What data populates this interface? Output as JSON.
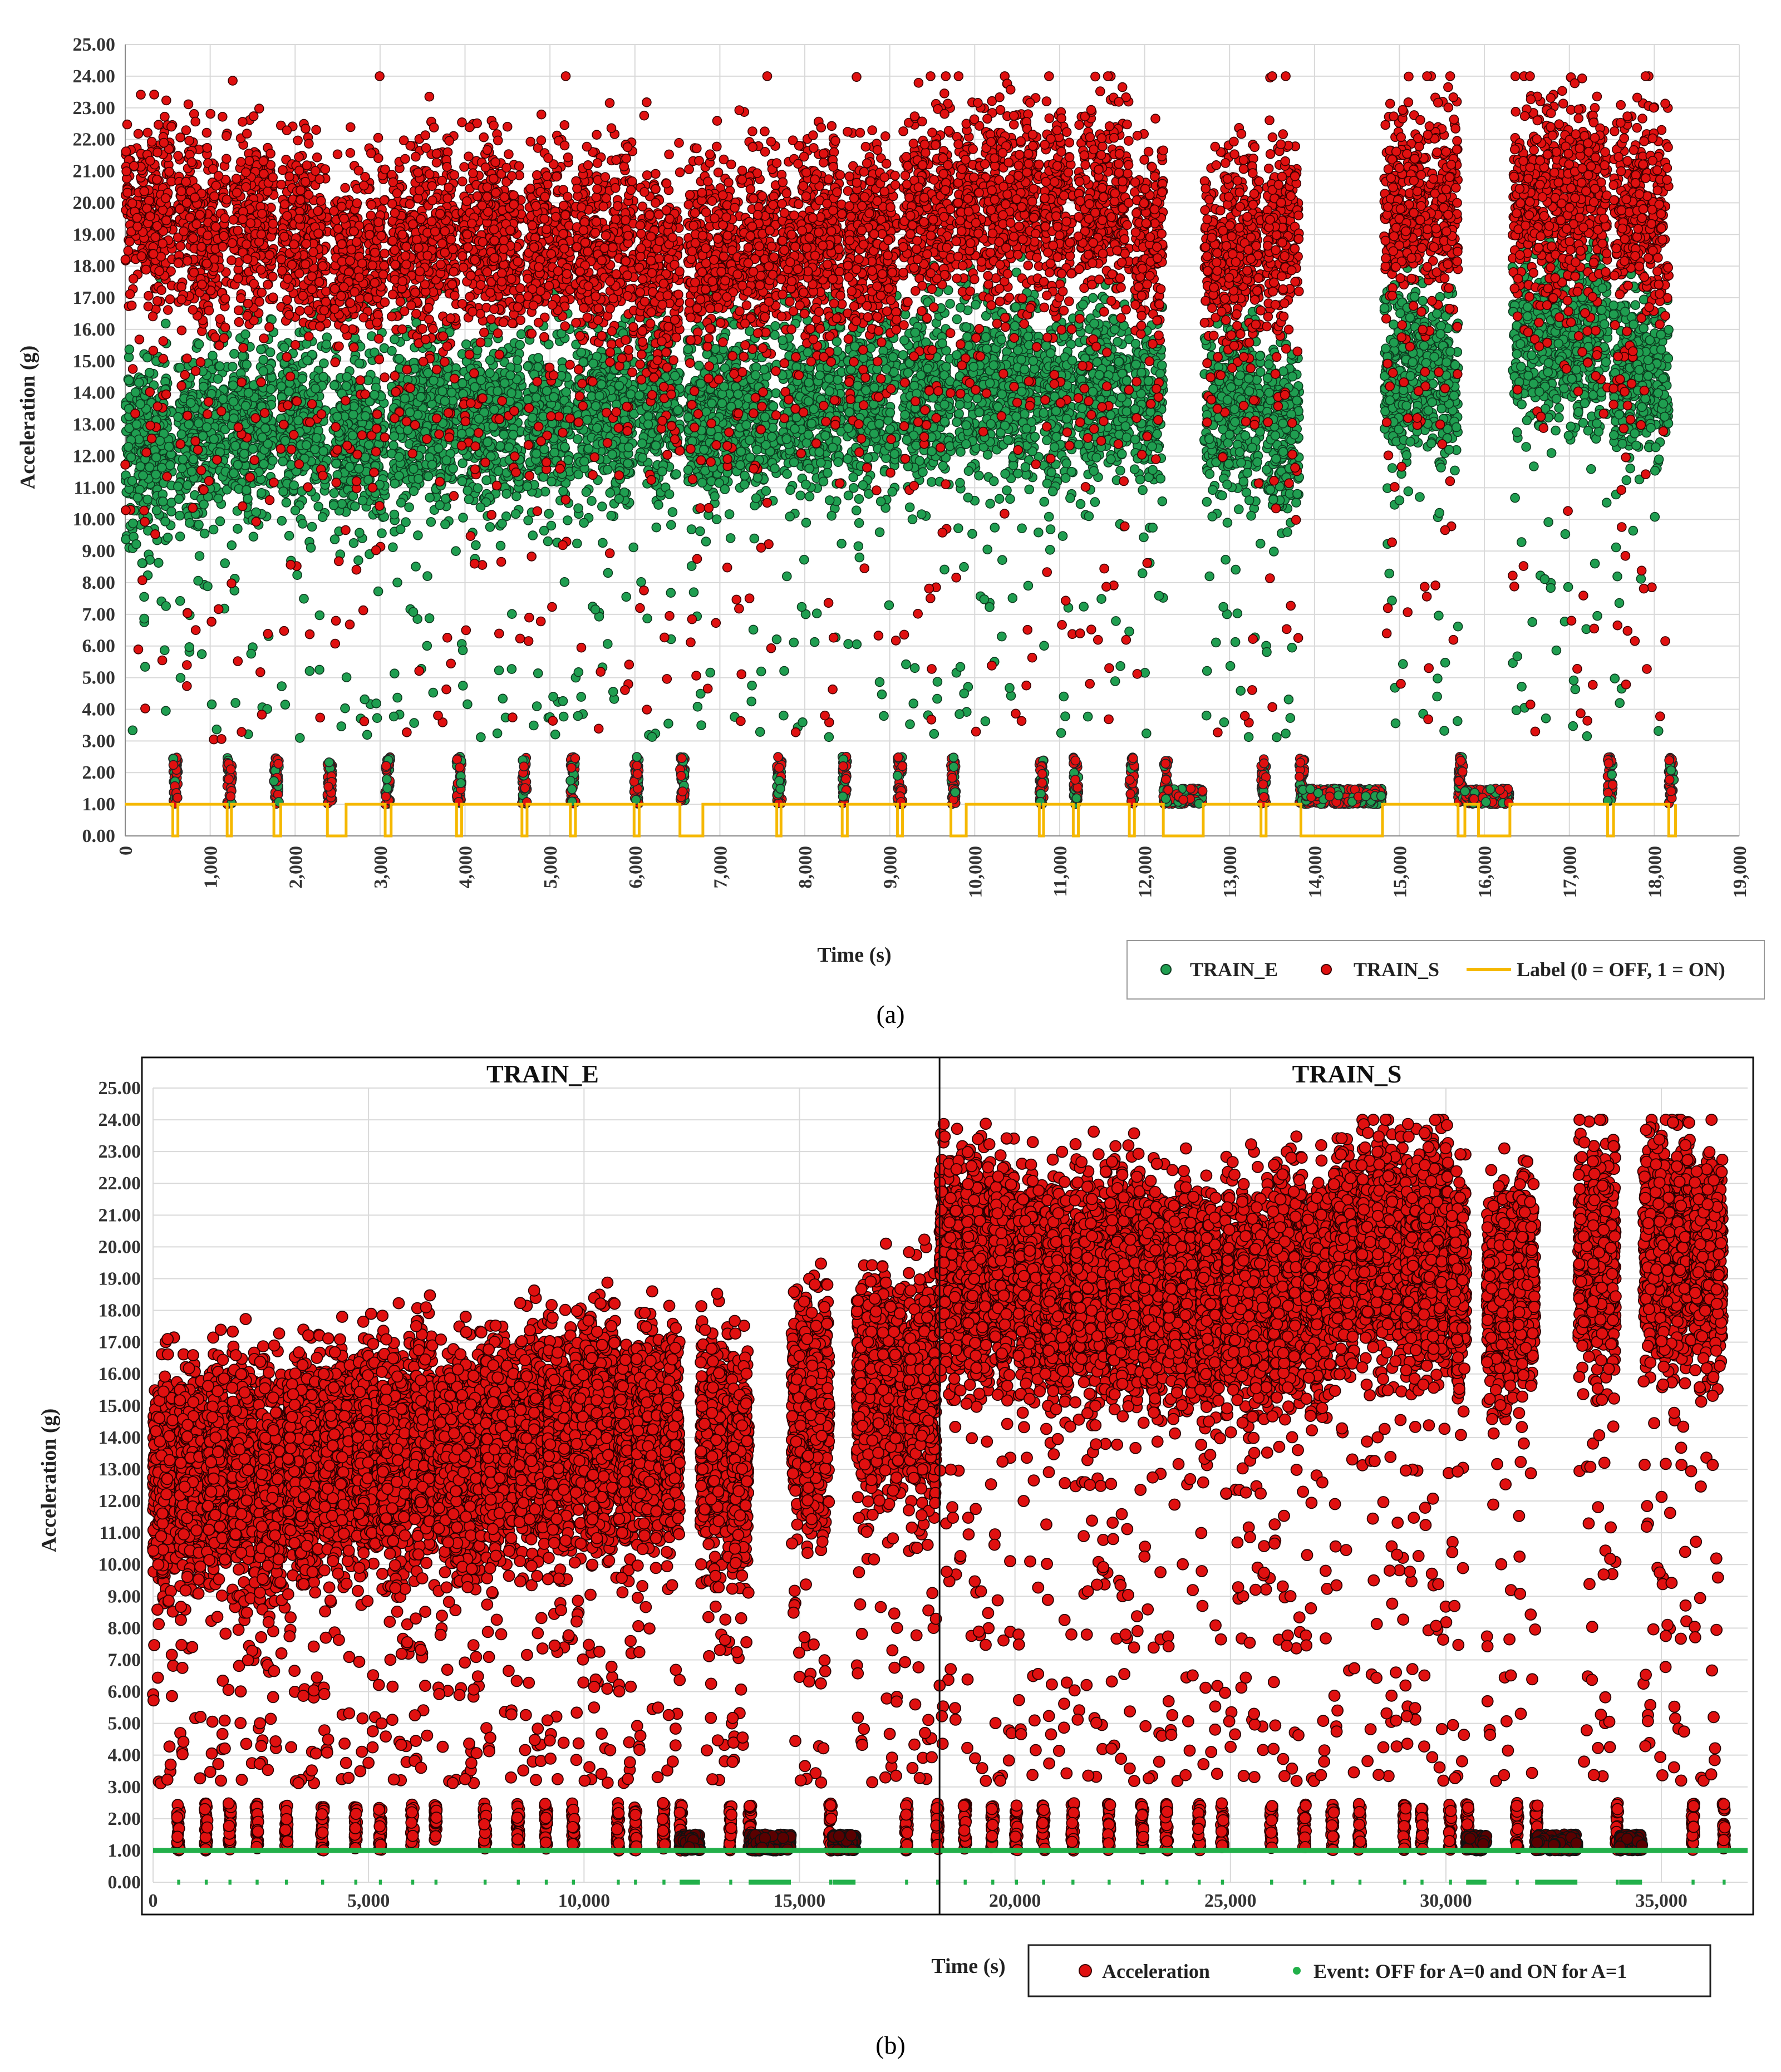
{
  "figure": {
    "panel_a_label": "(a)",
    "panel_b_label": "(b)"
  },
  "chart_data": [
    {
      "type": "scatter",
      "panel": "(a)",
      "xlabel": "Time (s)",
      "ylabel": "Acceleration (g)",
      "xlim": [
        0,
        19000
      ],
      "ylim": [
        0,
        25
      ],
      "x_ticks": [
        "0",
        "1,000",
        "2,000",
        "3,000",
        "4,000",
        "5,000",
        "6,000",
        "7,000",
        "8,000",
        "9,000",
        "10,000",
        "11,000",
        "12,000",
        "13,000",
        "14,000",
        "15,000",
        "16,000",
        "17,000",
        "18,000",
        "19,000"
      ],
      "y_ticks": [
        "0.00",
        "1.00",
        "2.00",
        "3.00",
        "4.00",
        "5.00",
        "6.00",
        "7.00",
        "8.00",
        "9.00",
        "10.00",
        "11.00",
        "12.00",
        "13.00",
        "14.00",
        "15.00",
        "16.00",
        "17.00",
        "18.00",
        "19.00",
        "20.00",
        "21.00",
        "22.00",
        "23.00",
        "24.00",
        "25.00"
      ],
      "grid": true,
      "legend": {
        "placement": "bottom-right",
        "entries": [
          "TRAIN_E",
          "TRAIN_S",
          "Label (0 = OFF, 1 = ON)"
        ]
      },
      "colors": {
        "TRAIN_E": "#1f9e50",
        "TRAIN_S": "#e01010",
        "Label": "#f5b800"
      },
      "active_segments": [
        {
          "start": 0,
          "end": 560,
          "e_mean": 12.3,
          "s_mean": 19.6
        },
        {
          "start": 620,
          "end": 1200,
          "e_mean": 12.5,
          "s_mean": 19.2
        },
        {
          "start": 1250,
          "end": 1750,
          "e_mean": 12.8,
          "s_mean": 19.4
        },
        {
          "start": 1830,
          "end": 2380,
          "e_mean": 13.0,
          "s_mean": 18.8
        },
        {
          "start": 2450,
          "end": 3060,
          "e_mean": 12.6,
          "s_mean": 18.2
        },
        {
          "start": 3130,
          "end": 3900,
          "e_mean": 13.2,
          "s_mean": 18.8
        },
        {
          "start": 3960,
          "end": 4670,
          "e_mean": 13.1,
          "s_mean": 18.9
        },
        {
          "start": 4730,
          "end": 5240,
          "e_mean": 13.2,
          "s_mean": 18.6
        },
        {
          "start": 5300,
          "end": 5990,
          "e_mean": 13.4,
          "s_mean": 18.6
        },
        {
          "start": 6050,
          "end": 6530,
          "e_mean": 13.8,
          "s_mean": 17.8
        },
        {
          "start": 6620,
          "end": 7670,
          "e_mean": 13.3,
          "s_mean": 18.4
        },
        {
          "start": 7720,
          "end": 8440,
          "e_mean": 13.6,
          "s_mean": 18.8
        },
        {
          "start": 8500,
          "end": 9090,
          "e_mean": 13.8,
          "s_mean": 18.6
        },
        {
          "start": 9150,
          "end": 9720,
          "e_mean": 14.0,
          "s_mean": 19.6
        },
        {
          "start": 9780,
          "end": 10760,
          "e_mean": 14.2,
          "s_mean": 20.0
        },
        {
          "start": 10810,
          "end": 11160,
          "e_mean": 13.6,
          "s_mean": 19.6
        },
        {
          "start": 11220,
          "end": 11820,
          "e_mean": 14.1,
          "s_mean": 19.8
        },
        {
          "start": 11880,
          "end": 12220,
          "e_mean": 13.6,
          "s_mean": 18.8
        },
        {
          "start": 12700,
          "end": 13370,
          "e_mean": 13.6,
          "s_mean": 18.6
        },
        {
          "start": 13430,
          "end": 13820,
          "e_mean": 12.9,
          "s_mean": 19.0
        },
        {
          "start": 14820,
          "end": 15690,
          "e_mean": 14.6,
          "s_mean": 19.8
        },
        {
          "start": 16330,
          "end": 17450,
          "e_mean": 15.8,
          "s_mean": 20.2
        },
        {
          "start": 17520,
          "end": 18170,
          "e_mean": 14.4,
          "s_mean": 19.6
        }
      ],
      "idle_bursts": [
        560,
        1200,
        1750,
        2380,
        3060,
        3900,
        4670,
        5240,
        5990,
        6530,
        7670,
        8440,
        9090,
        9720,
        10760,
        11160,
        11820,
        12220,
        13370,
        13820,
        15690,
        17450,
        18170
      ],
      "idle_level": [
        1.0,
        2.5
      ],
      "long_idle_intervals": [
        [
          12220,
          12690
        ],
        [
          13840,
          14800
        ],
        [
          15770,
          16300
        ]
      ],
      "label_off_intervals": [
        [
          560,
          620
        ],
        [
          1200,
          1250
        ],
        [
          1750,
          1830
        ],
        [
          2380,
          2600
        ],
        [
          3060,
          3130
        ],
        [
          3900,
          3960
        ],
        [
          4670,
          4730
        ],
        [
          5240,
          5300
        ],
        [
          5990,
          6050
        ],
        [
          6530,
          6800
        ],
        [
          7670,
          7720
        ],
        [
          8440,
          8500
        ],
        [
          9090,
          9150
        ],
        [
          9720,
          9900
        ],
        [
          10760,
          10810
        ],
        [
          11160,
          11220
        ],
        [
          11820,
          11880
        ],
        [
          12220,
          12690
        ],
        [
          13370,
          13430
        ],
        [
          13840,
          14800
        ],
        [
          15690,
          15770
        ],
        [
          15930,
          16300
        ],
        [
          17450,
          17520
        ],
        [
          18170,
          18250
        ]
      ],
      "label_range_x": [
        0,
        18250
      ]
    },
    {
      "type": "scatter",
      "panel": "(b)",
      "xlabel": "Time (s)",
      "ylabel": "Acceleration (g)",
      "xlim": [
        0,
        37000
      ],
      "ylim": [
        0,
        25
      ],
      "x_ticks": [
        "0",
        "5,000",
        "10,000",
        "15,000",
        "20,000",
        "25,000",
        "30,000",
        "35,000"
      ],
      "y_ticks": [
        "0.00",
        "1.00",
        "2.00",
        "3.00",
        "4.00",
        "5.00",
        "6.00",
        "7.00",
        "8.00",
        "9.00",
        "10.00",
        "11.00",
        "12.00",
        "13.00",
        "14.00",
        "15.00",
        "16.00",
        "17.00",
        "18.00",
        "19.00",
        "20.00",
        "21.00",
        "22.00",
        "23.00",
        "24.00",
        "25.00"
      ],
      "grid": true,
      "region_labels": [
        "TRAIN_E",
        "TRAIN_S"
      ],
      "divider_x": 18250,
      "legend": {
        "placement": "bottom-right",
        "entries": [
          "Acceleration",
          "Event: OFF for A=0 and ON for A=1"
        ]
      },
      "colors": {
        "Acceleration": "#e01010",
        "Event": "#22b04a"
      },
      "active_segments": [
        {
          "start": 0,
          "end": 560,
          "mean": 12.6
        },
        {
          "start": 620,
          "end": 1200,
          "mean": 12.8
        },
        {
          "start": 1250,
          "end": 1750,
          "mean": 12.8
        },
        {
          "start": 1830,
          "end": 2380,
          "mean": 12.9
        },
        {
          "start": 2450,
          "end": 3060,
          "mean": 12.6
        },
        {
          "start": 3130,
          "end": 3900,
          "mean": 13.2
        },
        {
          "start": 3960,
          "end": 4670,
          "mean": 13.3
        },
        {
          "start": 4730,
          "end": 5240,
          "mean": 13.3
        },
        {
          "start": 5300,
          "end": 5990,
          "mean": 13.4
        },
        {
          "start": 6050,
          "end": 6530,
          "mean": 13.8
        },
        {
          "start": 6620,
          "end": 7670,
          "mean": 13.3
        },
        {
          "start": 7720,
          "end": 8440,
          "mean": 13.7
        },
        {
          "start": 8500,
          "end": 9090,
          "mean": 13.8
        },
        {
          "start": 9150,
          "end": 9720,
          "mean": 13.9
        },
        {
          "start": 9780,
          "end": 10760,
          "mean": 14.2
        },
        {
          "start": 10810,
          "end": 11160,
          "mean": 13.6
        },
        {
          "start": 11220,
          "end": 11820,
          "mean": 14.1
        },
        {
          "start": 11880,
          "end": 12220,
          "mean": 13.8
        },
        {
          "start": 12700,
          "end": 13370,
          "mean": 13.7
        },
        {
          "start": 13430,
          "end": 13820,
          "mean": 13.4
        },
        {
          "start": 14820,
          "end": 15690,
          "mean": 14.8
        },
        {
          "start": 16330,
          "end": 17450,
          "mean": 15.6
        },
        {
          "start": 17520,
          "end": 18170,
          "mean": 15.4
        },
        {
          "start": 18250,
          "end": 18810,
          "mean": 19.6
        },
        {
          "start": 18870,
          "end": 19450,
          "mean": 19.2
        },
        {
          "start": 19500,
          "end": 20000,
          "mean": 19.4
        },
        {
          "start": 20080,
          "end": 20630,
          "mean": 18.8
        },
        {
          "start": 20700,
          "end": 21310,
          "mean": 18.4
        },
        {
          "start": 21380,
          "end": 22150,
          "mean": 18.8
        },
        {
          "start": 22210,
          "end": 22920,
          "mean": 18.9
        },
        {
          "start": 22980,
          "end": 23490,
          "mean": 18.6
        },
        {
          "start": 23550,
          "end": 24240,
          "mean": 18.6
        },
        {
          "start": 24300,
          "end": 24780,
          "mean": 17.9
        },
        {
          "start": 24870,
          "end": 25920,
          "mean": 18.4
        },
        {
          "start": 25970,
          "end": 26690,
          "mean": 18.8
        },
        {
          "start": 26750,
          "end": 27340,
          "mean": 18.7
        },
        {
          "start": 27400,
          "end": 27970,
          "mean": 19.6
        },
        {
          "start": 28030,
          "end": 29010,
          "mean": 19.9
        },
        {
          "start": 29060,
          "end": 29410,
          "mean": 19.6
        },
        {
          "start": 29470,
          "end": 30070,
          "mean": 19.8
        },
        {
          "start": 30130,
          "end": 30470,
          "mean": 18.9
        },
        {
          "start": 30950,
          "end": 31620,
          "mean": 18.6
        },
        {
          "start": 31680,
          "end": 32070,
          "mean": 18.9
        },
        {
          "start": 33070,
          "end": 33940,
          "mean": 19.6
        },
        {
          "start": 34580,
          "end": 35700,
          "mean": 19.9
        },
        {
          "start": 35770,
          "end": 36420,
          "mean": 19.6
        }
      ],
      "idle_bursts": [
        560,
        1200,
        1750,
        2380,
        3060,
        3900,
        4670,
        5240,
        5990,
        6530,
        7670,
        8440,
        9090,
        9720,
        10760,
        11160,
        11820,
        12220,
        13370,
        13820,
        15690,
        17450,
        18170,
        18810,
        19450,
        20000,
        20630,
        21310,
        22150,
        22920,
        23490,
        24240,
        24780,
        25920,
        26690,
        27340,
        27970,
        29010,
        29410,
        30070,
        30470,
        31620,
        32070,
        33940,
        35700,
        36420
      ],
      "idle_level": [
        1.0,
        2.5
      ],
      "long_idle_intervals": [
        [
          12220,
          12690
        ],
        [
          13840,
          14800
        ],
        [
          15770,
          16300
        ],
        [
          30470,
          30940
        ],
        [
          32090,
          33050
        ],
        [
          34020,
          34550
        ]
      ],
      "event_levels": [
        0,
        1
      ]
    }
  ]
}
